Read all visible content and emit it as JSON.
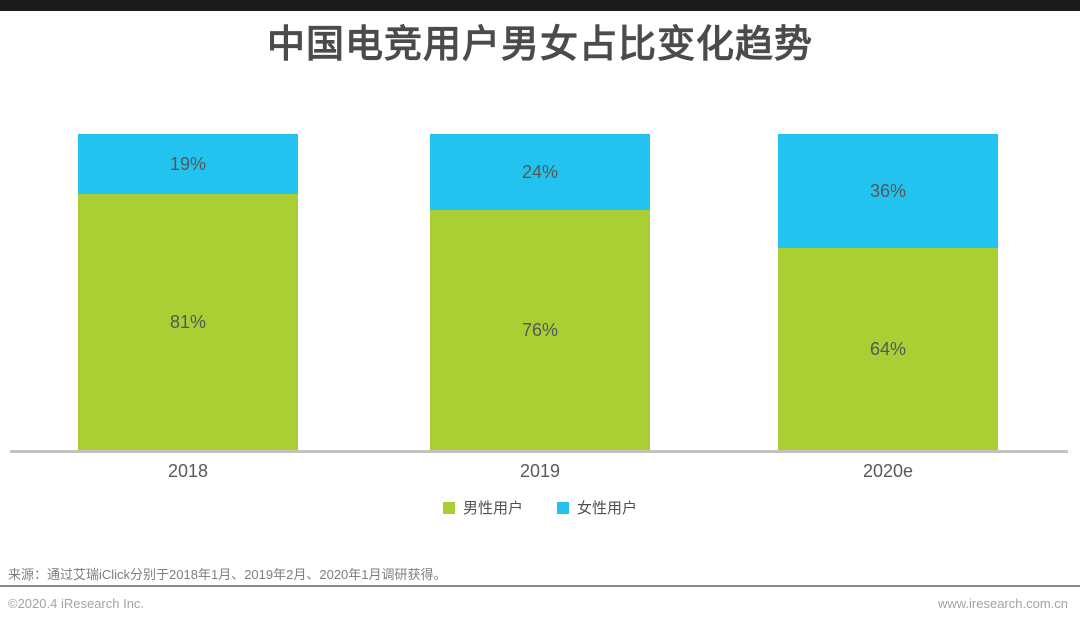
{
  "title": "中国电竞用户男女占比变化趋势",
  "accent": {
    "top_bar_color": "#1b1b1b",
    "male_color": "#a9cf35",
    "female_color": "#23c3f0"
  },
  "chart_data": {
    "type": "bar",
    "subtype": "stacked-100-percent",
    "title": "中国电竞用户男女占比变化趋势",
    "categories": [
      "2018",
      "2019",
      "2020e"
    ],
    "series": [
      {
        "name": "男性用户",
        "color": "#a9cf35",
        "values": [
          81,
          76,
          64
        ],
        "labels": [
          "81%",
          "76%",
          "64%"
        ]
      },
      {
        "name": "女性用户",
        "color": "#23c3f0",
        "values": [
          19,
          24,
          36
        ],
        "labels": [
          "19%",
          "24%",
          "36%"
        ]
      }
    ],
    "xlabel": "",
    "ylabel": "",
    "ylim": [
      0,
      100
    ],
    "grid": false,
    "legend_position": "bottom",
    "value_label_unit": "%"
  },
  "legend": {
    "items": [
      {
        "label": "男性用户"
      },
      {
        "label": "女性用户"
      }
    ]
  },
  "source_note": "来源：通过艾瑞iClick分别于2018年1月、2019年2月、2020年1月调研获得。",
  "footer": {
    "left": "©2020.4 iResearch Inc.",
    "right": "www.iresearch.com.cn"
  }
}
